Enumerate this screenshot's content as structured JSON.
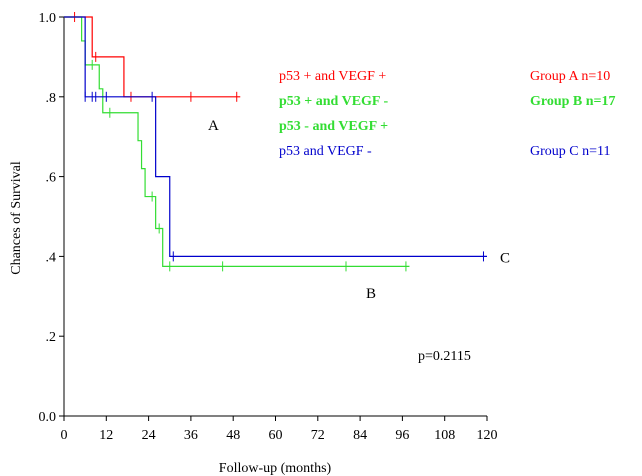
{
  "chart_data": {
    "type": "line",
    "subtype": "kaplan-meier",
    "title": "",
    "xlabel": "Follow-up (months)",
    "ylabel": "Chances of Survival",
    "xlim": [
      0,
      120
    ],
    "ylim": [
      0,
      1
    ],
    "xticks": [
      {
        "v": 0,
        "label": "0"
      },
      {
        "v": 12,
        "label": "12"
      },
      {
        "v": 24,
        "label": "24"
      },
      {
        "v": 36,
        "label": "36"
      },
      {
        "v": 48,
        "label": "48"
      },
      {
        "v": 60,
        "label": "60"
      },
      {
        "v": 72,
        "label": "72"
      },
      {
        "v": 84,
        "label": "84"
      },
      {
        "v": 96,
        "label": "96"
      },
      {
        "v": 108,
        "label": "108"
      },
      {
        "v": 120,
        "label": "120"
      }
    ],
    "yticks": [
      {
        "v": 0,
        "label": "0.0"
      },
      {
        "v": 0.2,
        "label": ".2"
      },
      {
        "v": 0.4,
        "label": ".4"
      },
      {
        "v": 0.6,
        "label": ".6"
      },
      {
        "v": 0.8,
        "label": ".8"
      },
      {
        "v": 1.0,
        "label": "1.0"
      }
    ],
    "grid": false,
    "series": [
      {
        "id": "A",
        "color": "#ff0000",
        "end_label": "A",
        "steps": [
          [
            0,
            1.0
          ],
          [
            8,
            0.9
          ],
          [
            17,
            0.8
          ],
          [
            50,
            0.8
          ]
        ],
        "censored": [
          [
            3,
            1.0
          ],
          [
            9,
            0.9
          ],
          [
            19,
            0.8
          ],
          [
            36,
            0.8
          ],
          [
            49,
            0.8
          ]
        ]
      },
      {
        "id": "B",
        "color": "#33dd33",
        "end_label": "B",
        "steps": [
          [
            0,
            1.0
          ],
          [
            5,
            0.94
          ],
          [
            6,
            0.88
          ],
          [
            10,
            0.82
          ],
          [
            11,
            0.76
          ],
          [
            21,
            0.69
          ],
          [
            22,
            0.62
          ],
          [
            23,
            0.55
          ],
          [
            26,
            0.47
          ],
          [
            28,
            0.375
          ],
          [
            98,
            0.375
          ]
        ],
        "censored": [
          [
            8,
            0.88
          ],
          [
            13,
            0.76
          ],
          [
            25,
            0.55
          ],
          [
            27,
            0.47
          ],
          [
            30,
            0.375
          ],
          [
            45,
            0.375
          ],
          [
            80,
            0.375
          ],
          [
            97,
            0.375
          ]
        ]
      },
      {
        "id": "C",
        "color": "#0000cc",
        "end_label": "C",
        "steps": [
          [
            0,
            1.0
          ],
          [
            6,
            0.8
          ],
          [
            26,
            0.6
          ],
          [
            30,
            0.4
          ],
          [
            120,
            0.4
          ]
        ],
        "censored": [
          [
            6,
            0.8
          ],
          [
            8,
            0.8
          ],
          [
            9,
            0.8
          ],
          [
            12,
            0.8
          ],
          [
            25,
            0.8
          ],
          [
            31,
            0.4
          ],
          [
            119,
            0.4
          ]
        ]
      }
    ],
    "legend": {
      "placement": "top-right",
      "entries": [
        {
          "text": "p53 + and VEGF +",
          "color": "#ff0000",
          "bold": false
        },
        {
          "text": "p53 + and VEGF -",
          "color": "#33dd33",
          "bold": true
        },
        {
          "text": "p53 - and VEGF +",
          "color": "#33dd33",
          "bold": true
        },
        {
          "text": "p53 and VEGF -",
          "color": "#0000cc",
          "bold": false
        }
      ],
      "groups": [
        {
          "text": "Group A n=10",
          "color": "#ff0000",
          "bold": false
        },
        {
          "text": "Group B n=17",
          "color": "#33dd33",
          "bold": true
        },
        {
          "text": "Group C n=11",
          "color": "#0000cc",
          "bold": false
        }
      ]
    },
    "annotation": "p=0.2115"
  }
}
